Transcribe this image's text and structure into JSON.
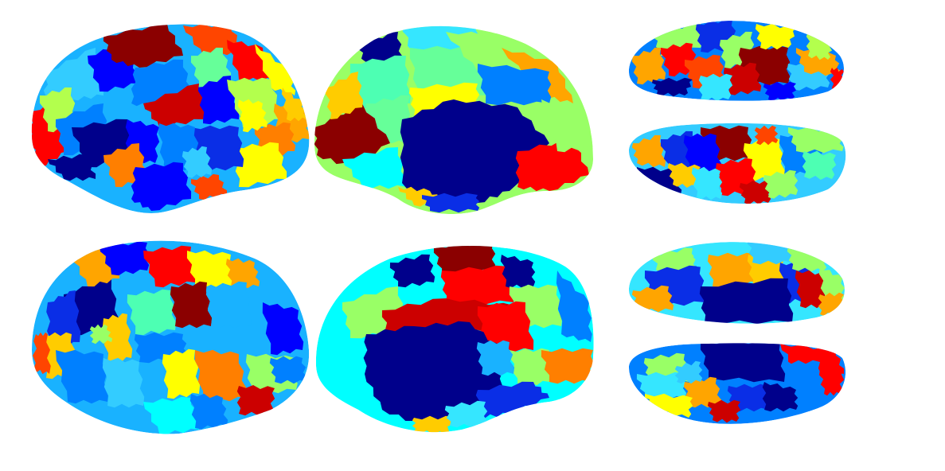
{
  "figure": {
    "background": "#ffffff",
    "colormap": "jet",
    "palette": {
      "navy": "#00008b",
      "blue": "#0000ff",
      "royal": "#0a2ee6",
      "azure": "#0080ff",
      "sky": "#19b2ff",
      "light_sky": "#33ccff",
      "cyan": "#00ffff",
      "aqua": "#35e6ff",
      "teal_green": "#4dffb3",
      "mint": "#66ff99",
      "light_green": "#99ff66",
      "lime": "#b3ff4d",
      "yellow": "#ffff00",
      "gold": "#ffcc00",
      "orange": "#ffa500",
      "dark_orange": "#ff7f00",
      "red_orange": "#ff4500",
      "red": "#ff0000",
      "crimson": "#cc0000",
      "maroon": "#8b0000"
    },
    "views": [
      {
        "name": "left-lateral",
        "row": 1
      },
      {
        "name": "left-medial",
        "row": 1
      },
      {
        "name": "dorsal-top",
        "row": 1
      },
      {
        "name": "ventral-top",
        "row": 1
      },
      {
        "name": "right-lateral",
        "row": 2
      },
      {
        "name": "right-medial",
        "row": 2
      },
      {
        "name": "dorsal-bottom",
        "row": 2
      },
      {
        "name": "ventral-bottom",
        "row": 2
      }
    ]
  }
}
